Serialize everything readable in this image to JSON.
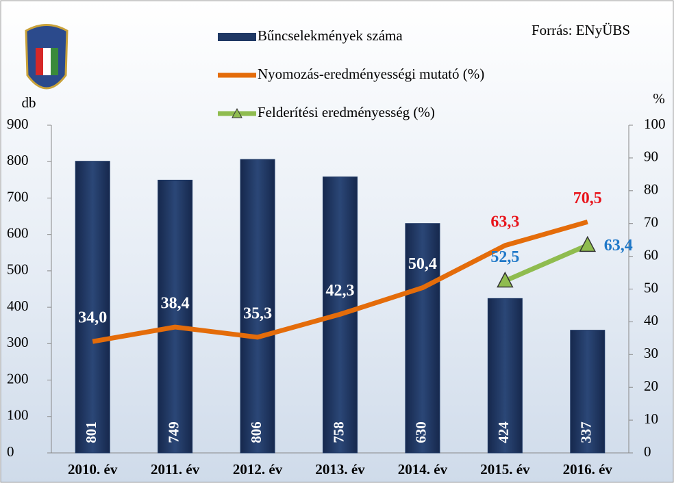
{
  "chart_data": {
    "type": "bar-line",
    "source": "Forrás: ENyÜBS",
    "ylabel": "db",
    "y2label": "%",
    "categories": [
      "2010. év",
      "2011. év",
      "2012. év",
      "2013. év",
      "2014. év",
      "2015. év",
      "2016. év"
    ],
    "series": [
      {
        "name": "Bűncselekmények száma",
        "type": "bar",
        "color": "#1f3864",
        "values": [
          801,
          749,
          806,
          758,
          630,
          424,
          337
        ],
        "label_color": "#ffffff"
      },
      {
        "name": "Nyomozás-eredményességi mutató (%)",
        "type": "line",
        "axis": "y2",
        "color": "#e46c0a",
        "values": [
          34.0,
          38.4,
          35.3,
          42.3,
          50.4,
          63.3,
          70.5
        ],
        "value_labels": [
          "34,0",
          "38,4",
          "35,3",
          "42,3",
          "50,4",
          "63,3",
          "70,5"
        ],
        "label_colors": [
          "#ffffff",
          "#ffffff",
          "#ffffff",
          "#ffffff",
          "#ffffff",
          "#e8141b",
          "#e8141b"
        ]
      },
      {
        "name": "Felderítési eredményesség (%)",
        "type": "line",
        "axis": "y2",
        "color": "#8fbc4f",
        "marker": "triangle",
        "values": [
          null,
          null,
          null,
          null,
          null,
          52.5,
          63.4
        ],
        "value_labels": [
          null,
          null,
          null,
          null,
          null,
          "52,5",
          "63,4"
        ],
        "label_colors": [
          null,
          null,
          null,
          null,
          null,
          "#1f78c8",
          "#1f78c8"
        ]
      }
    ],
    "ylim": [
      0,
      900
    ],
    "yticks": [
      0,
      100,
      200,
      300,
      400,
      500,
      600,
      700,
      800,
      900
    ],
    "y2lim": [
      0,
      100
    ],
    "y2ticks": [
      0,
      10,
      20,
      30,
      40,
      50,
      60,
      70,
      80,
      90,
      100
    ],
    "legend": "top"
  }
}
